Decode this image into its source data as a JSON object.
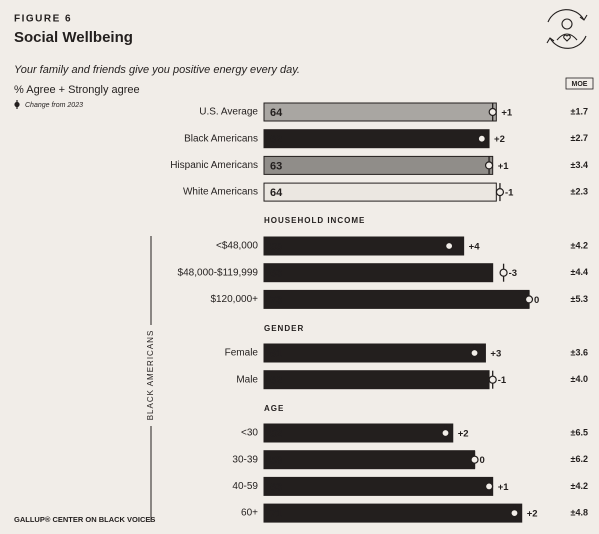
{
  "figure_label": "FIGURE 6",
  "title": "Social Wellbeing",
  "question": "Your family and friends give you positive energy every day.",
  "measure": "% Agree + Strongly agree",
  "legend": "Change from 2023",
  "moe_header": "MOE",
  "side_label": "BLACK AMERICANS",
  "footer": "GALLUP® CENTER ON BLACK VOICES",
  "chart_data": {
    "type": "bar",
    "groups": [
      {
        "categories": [
          "U.S. Average",
          "Black Americans",
          "Hispanic Americans",
          "White Americans"
        ],
        "values": [
          64,
          62,
          63,
          64
        ],
        "changes": [
          1,
          2,
          1,
          -1
        ],
        "change_labels": [
          "+1",
          "+2",
          "+1",
          "-1"
        ],
        "moe_labels": [
          "±1.7",
          "±2.7",
          "±3.4",
          "±2.3"
        ],
        "colors": [
          "#a9a6a2",
          "#231f1e",
          "#908d89",
          "#ebe7e1"
        ]
      },
      {
        "title": "HOUSEHOLD INCOME",
        "categories": [
          "<$48,000",
          "$48,000-$119,999",
          "$120,000+"
        ],
        "values": [
          55,
          63,
          73
        ],
        "changes": [
          4,
          -3,
          0
        ],
        "change_labels": [
          "+4",
          "-3",
          "0"
        ],
        "moe_labels": [
          "±4.2",
          "±4.4",
          "±5.3"
        ],
        "color": "#231f1e"
      },
      {
        "title": "GENDER",
        "categories": [
          "Female",
          "Male"
        ],
        "values": [
          61,
          62
        ],
        "changes": [
          3,
          -1
        ],
        "change_labels": [
          "+3",
          "-1"
        ],
        "moe_labels": [
          "±3.6",
          "±4.0"
        ],
        "color": "#231f1e"
      },
      {
        "title": "AGE",
        "categories": [
          "<30",
          "30-39",
          "40-59",
          "60+"
        ],
        "values": [
          52,
          58,
          63,
          71
        ],
        "changes": [
          2,
          0,
          1,
          2
        ],
        "change_labels": [
          "+2",
          "0",
          "+1",
          "+2"
        ],
        "moe_labels": [
          "±6.5",
          "±6.2",
          "±4.2",
          "±4.8"
        ],
        "color": "#231f1e"
      }
    ]
  }
}
